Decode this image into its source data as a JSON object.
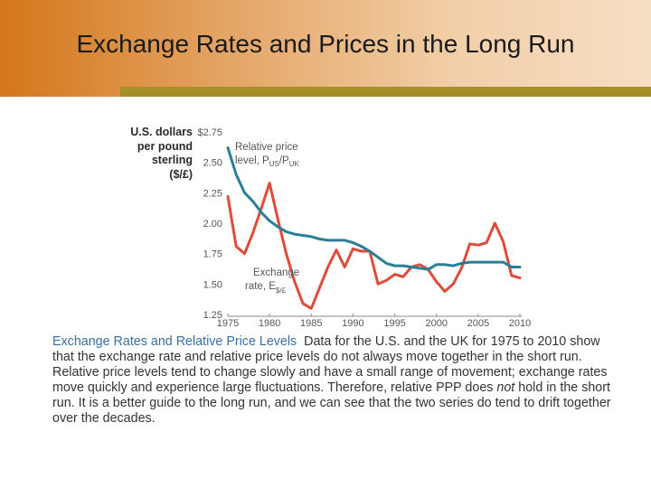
{
  "slide": {
    "title": "Exchange Rates and Prices in the Long Run",
    "header_gradient": [
      "#d4761a",
      "#f6dec4"
    ],
    "accent_color": "#a48f29"
  },
  "chart_data": {
    "type": "line",
    "ylabel_lines": [
      "U.S. dollars",
      "per pound",
      "sterling",
      "($/£)"
    ],
    "y_ticks": [
      "$2.75",
      "2.50",
      "2.25",
      "2.00",
      "1.75",
      "1.50",
      "1.25"
    ],
    "x_ticks": [
      "1975",
      "1980",
      "1985",
      "1990",
      "1995",
      "2000",
      "2005",
      "2010"
    ],
    "ylim": [
      1.25,
      2.75
    ],
    "xlim": [
      1975,
      2010
    ],
    "grid": false,
    "series": [
      {
        "name": "Relative price level",
        "label_lines": [
          "Relative price",
          "level, P",
          "/P"
        ],
        "label_subscripts": [
          "US",
          "UK"
        ],
        "color": "#2a7f95",
        "x": [
          1975,
          1976,
          1977,
          1978,
          1979,
          1980,
          1981,
          1982,
          1983,
          1984,
          1985,
          1986,
          1987,
          1988,
          1989,
          1990,
          1991,
          1992,
          1993,
          1994,
          1995,
          1996,
          1997,
          1998,
          1999,
          2000,
          2001,
          2002,
          2003,
          2004,
          2005,
          2006,
          2007,
          2008,
          2009,
          2010
        ],
        "values": [
          2.62,
          2.4,
          2.25,
          2.18,
          2.09,
          2.02,
          1.97,
          1.93,
          1.91,
          1.9,
          1.89,
          1.87,
          1.86,
          1.86,
          1.86,
          1.84,
          1.81,
          1.77,
          1.72,
          1.67,
          1.65,
          1.65,
          1.64,
          1.63,
          1.62,
          1.66,
          1.66,
          1.65,
          1.67,
          1.68,
          1.68,
          1.68,
          1.68,
          1.68,
          1.64,
          1.64
        ]
      },
      {
        "name": "Exchange rate",
        "label_lines": [
          "Exchange",
          "rate, E"
        ],
        "label_subscripts": [
          "$/£"
        ],
        "color": "#e04b39",
        "x": [
          1975,
          1976,
          1977,
          1978,
          1979,
          1980,
          1981,
          1982,
          1983,
          1984,
          1985,
          1986,
          1987,
          1988,
          1989,
          1990,
          1991,
          1992,
          1993,
          1994,
          1995,
          1996,
          1997,
          1998,
          1999,
          2000,
          2001,
          2002,
          2003,
          2004,
          2005,
          2006,
          2007,
          2008,
          2009,
          2010
        ],
        "values": [
          2.22,
          1.81,
          1.75,
          1.92,
          2.12,
          2.33,
          2.03,
          1.75,
          1.52,
          1.34,
          1.3,
          1.47,
          1.64,
          1.78,
          1.64,
          1.79,
          1.77,
          1.77,
          1.5,
          1.53,
          1.58,
          1.56,
          1.64,
          1.66,
          1.62,
          1.52,
          1.44,
          1.5,
          1.63,
          1.83,
          1.82,
          1.84,
          2.0,
          1.85,
          1.57,
          1.55
        ]
      }
    ]
  },
  "caption": {
    "title": "Exchange Rates and Relative Price Levels",
    "part1": "Data for the U.S. and the UK for 1975 to 2010 show that the exchange rate and relative price levels do not always move together in the short run. Relative price levels tend to change slowly and have a small range of movement; exchange rates move quickly and experience large fluctuations. Therefore, relative PPP does ",
    "emphasis": "not",
    "part2": " hold in the short run. It is a better guide to the long run, and we can see that the two series do tend to drift together over the decades."
  }
}
